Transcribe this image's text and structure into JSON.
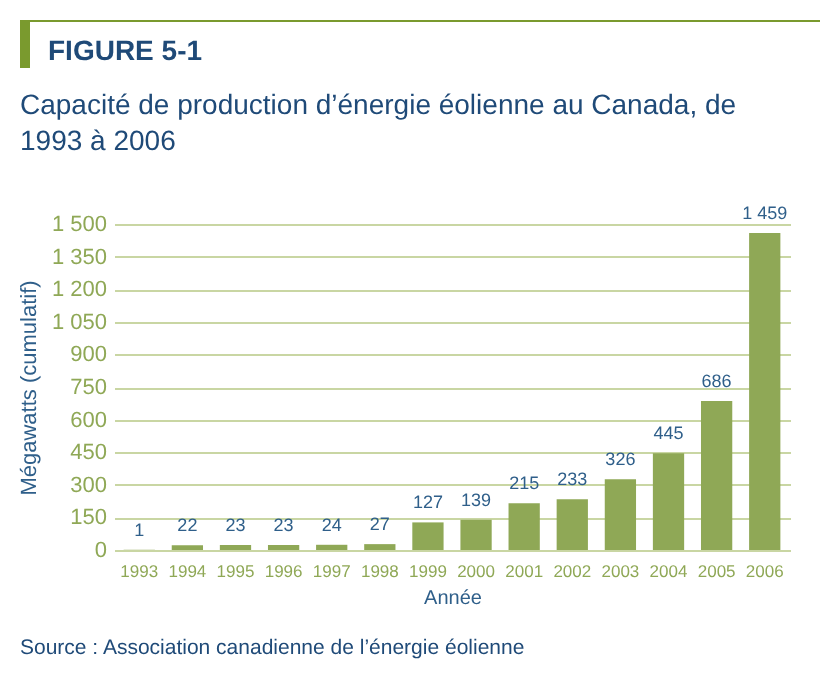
{
  "chart_data": {
    "type": "bar",
    "title": "Capacité de production d’énergie éolienne au Canada, de 1993 à 2006",
    "xlabel": "Année",
    "ylabel": "Mégawatts (cumulatif)",
    "annotations": [
      "FIGURE 5-1",
      "Source : Association canadienne de l’énergie éolienne"
    ],
    "categories": [
      "1993",
      "1994",
      "1995",
      "1996",
      "1997",
      "1998",
      "1999",
      "2000",
      "2001",
      "2002",
      "2003",
      "2004",
      "2005",
      "2006"
    ],
    "values": [
      1,
      22,
      23,
      23,
      24,
      27,
      127,
      139,
      215,
      233,
      326,
      445,
      686,
      1459
    ],
    "value_labels": [
      "1",
      "22",
      "23",
      "23",
      "24",
      "27",
      "127",
      "139",
      "215",
      "233",
      "326",
      "445",
      "686",
      "1 459"
    ],
    "color": "#8fa856",
    "ylim": [
      0,
      1500
    ],
    "yticks": [
      0,
      150,
      300,
      450,
      600,
      750,
      900,
      {
        "value": 1050,
        "label": "1 050"
      },
      {
        "value": 1200,
        "label": "1 200"
      },
      {
        "value": 1350,
        "label": "1 350"
      },
      {
        "value": 1500,
        "label": "1 500"
      }
    ],
    "grid": "y"
  }
}
